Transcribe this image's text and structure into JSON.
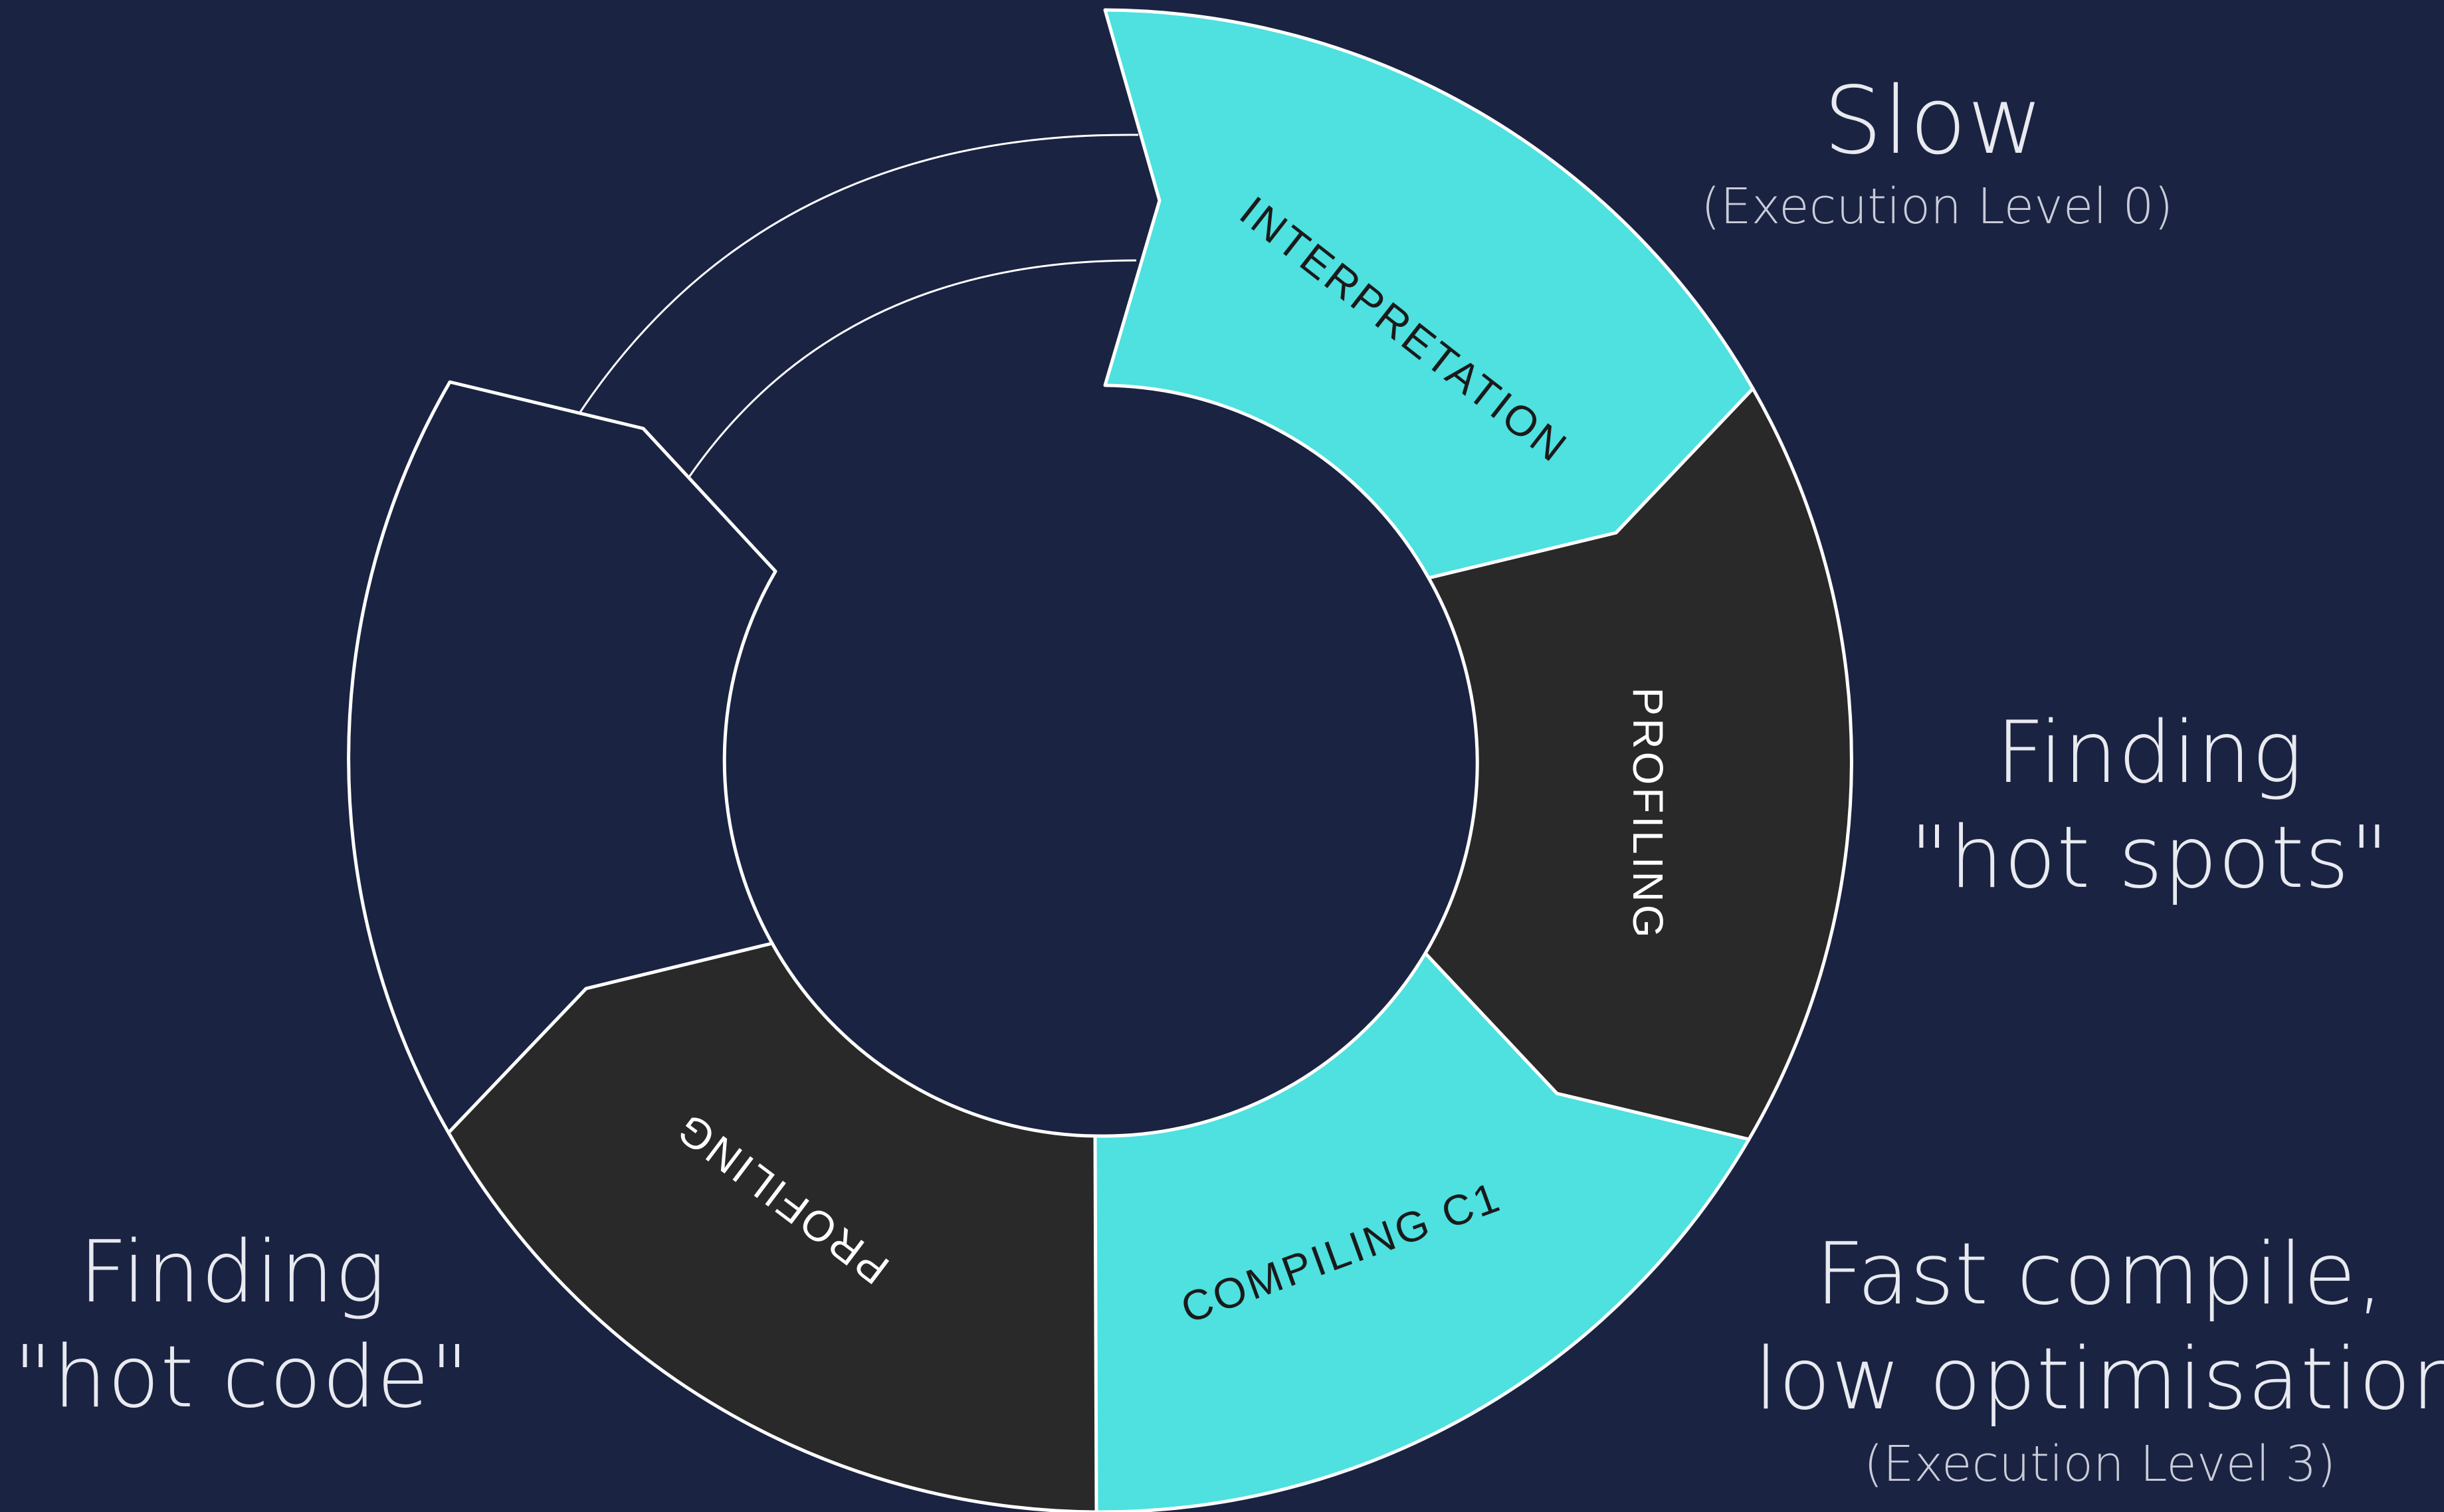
{
  "colors": {
    "background": "#1a2342",
    "accent_cyan": "#4fe0e0",
    "segment_dark": "#292929",
    "outline": "#ffffff"
  },
  "segments": [
    {
      "label": "INTERPRETATION",
      "color": "#4fe0e0",
      "text_color": "#1a1a1a"
    },
    {
      "label": "PROFILING",
      "color": "#292929",
      "text_color": "#ffffff"
    },
    {
      "label": "COMPILING C1",
      "color": "#4fe0e0",
      "text_color": "#1a1a1a"
    },
    {
      "label": "PROFILING",
      "color": "#292929",
      "text_color": "#ffffff"
    },
    {
      "label": "",
      "color": "#1a2342",
      "text_color": "#ffffff"
    }
  ],
  "annotations": {
    "slow": {
      "title": "Slow",
      "subtitle": "(Execution Level 0)"
    },
    "hot_spots": {
      "line1": "Finding",
      "line2": "\"hot spots\""
    },
    "fast_compile": {
      "line1": "Fast compile,",
      "line2": "low optimisation",
      "subtitle": "(Execution Level 3)"
    },
    "hot_code": {
      "line1": "Finding",
      "line2": "\"hot code\""
    }
  }
}
